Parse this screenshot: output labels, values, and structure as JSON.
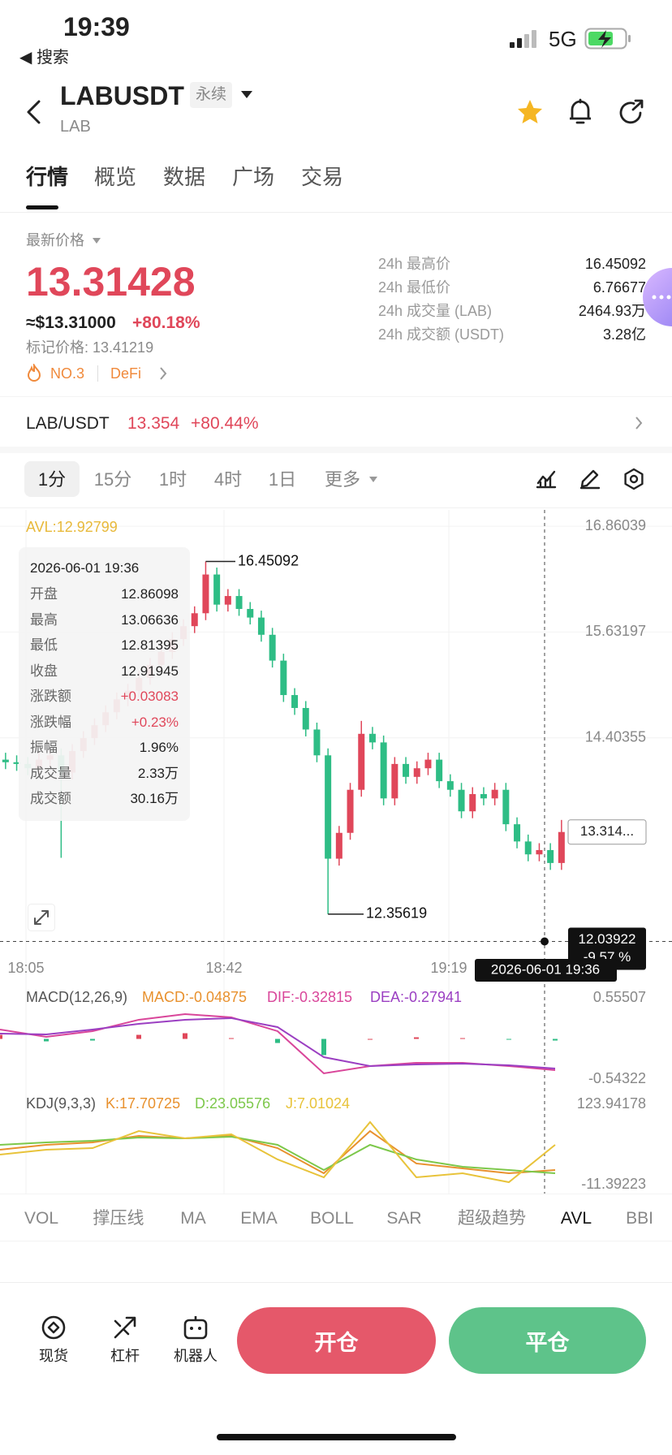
{
  "status_bar": {
    "time": "19:39",
    "back_app": "◀ 搜索",
    "network": "5G"
  },
  "header": {
    "symbol": "LABUSDT",
    "tag": "永续",
    "base": "LAB"
  },
  "tabs": [
    "行情",
    "概览",
    "数据",
    "广场",
    "交易"
  ],
  "price": {
    "label": "最新价格",
    "last": "13.31428",
    "approx": "≈$13.31000",
    "change": "+80.18%",
    "mark": "标记价格: 13.41219",
    "rank": "NO.3",
    "sector": "DeFi"
  },
  "stats": [
    {
      "label": "24h 最高价",
      "value": "16.45092"
    },
    {
      "label": "24h 最低价",
      "value": "6.76677"
    },
    {
      "label": "24h 成交量 (LAB)",
      "value": "2464.93万"
    },
    {
      "label": "24h 成交额 (USDT)",
      "value": "3.28亿"
    }
  ],
  "spot": {
    "pair": "LAB/USDT",
    "price": "13.354",
    "change": "+80.44%"
  },
  "intervals": [
    "1分",
    "15分",
    "1时",
    "4时",
    "1日",
    "更多"
  ],
  "price_chart": {
    "type": "candlestick",
    "avl": "AVL:12.92799",
    "ylim": [
      11.94,
      17.05
    ],
    "yticks": [
      16.86039,
      15.63197,
      14.40355
    ],
    "x_labels": [
      "18:05",
      "18:42",
      "19:19"
    ],
    "up_color": "#e0475a",
    "down_color": "#2ebd85",
    "open": [
      14.15,
      14.12,
      14.1,
      14.05,
      14.15,
      14.2,
      14.0,
      14.25,
      14.4,
      14.55,
      14.7,
      14.85,
      14.95,
      15.1,
      15.25,
      15.4,
      15.55,
      15.7,
      15.85,
      16.3,
      15.95,
      16.05,
      15.9,
      15.8,
      15.6,
      15.3,
      14.9,
      14.75,
      14.5,
      14.2,
      13.0,
      13.3,
      13.8,
      14.45,
      14.35,
      13.7,
      14.1,
      13.95,
      14.05,
      14.15,
      13.9,
      13.8,
      13.55,
      13.75,
      13.7,
      13.8,
      13.4,
      13.2,
      13.05,
      13.1,
      12.95
    ],
    "high": [
      14.23,
      14.2,
      14.18,
      14.23,
      14.28,
      14.28,
      14.33,
      14.48,
      14.63,
      14.78,
      14.93,
      15.03,
      15.18,
      15.33,
      15.48,
      15.63,
      15.78,
      15.93,
      16.45092,
      16.38,
      16.13,
      16.13,
      15.98,
      15.88,
      15.68,
      15.38,
      14.98,
      14.83,
      14.58,
      14.28,
      13.38,
      13.88,
      14.6,
      14.53,
      14.43,
      14.18,
      14.18,
      14.13,
      14.23,
      14.23,
      13.98,
      13.88,
      13.83,
      13.83,
      13.88,
      13.88,
      13.48,
      13.28,
      13.18,
      13.18,
      13.45
    ],
    "low": [
      14.04,
      14.02,
      13.97,
      13.97,
      14.07,
      13.01,
      13.92,
      14.17,
      14.32,
      14.47,
      14.62,
      14.77,
      14.87,
      15.02,
      15.17,
      15.32,
      15.47,
      15.62,
      15.77,
      15.87,
      15.87,
      15.82,
      15.72,
      15.52,
      15.22,
      14.82,
      14.67,
      14.42,
      14.12,
      12.35619,
      12.92,
      13.22,
      13.72,
      14.27,
      13.62,
      13.62,
      13.87,
      13.87,
      13.97,
      13.82,
      13.72,
      13.47,
      13.47,
      13.62,
      13.62,
      13.32,
      13.12,
      12.97,
      12.97,
      12.87,
      12.87
    ],
    "close": [
      14.12,
      14.1,
      14.05,
      14.15,
      14.2,
      14.0,
      14.25,
      14.4,
      14.55,
      14.7,
      14.85,
      14.95,
      15.1,
      15.25,
      15.4,
      15.55,
      15.7,
      15.85,
      16.3,
      15.95,
      16.05,
      15.9,
      15.8,
      15.6,
      15.3,
      14.9,
      14.75,
      14.5,
      14.2,
      13.0,
      13.3,
      13.8,
      14.45,
      14.35,
      13.7,
      14.1,
      13.95,
      14.05,
      14.15,
      13.9,
      13.8,
      13.55,
      13.75,
      13.7,
      13.8,
      13.4,
      13.2,
      13.05,
      13.1,
      12.95,
      13.31
    ],
    "high_label": 16.45092,
    "low_label": 12.35619,
    "last_price_label": "13.314...",
    "crosshair": {
      "price": 12.03922,
      "change": "-9.57 %",
      "time": "2026-06-01 19:36"
    },
    "tooltip": {
      "time": "2026-06-01 19:36",
      "rows": [
        {
          "label": "开盘",
          "value": "12.86098"
        },
        {
          "label": "最高",
          "value": "13.06636"
        },
        {
          "label": "最低",
          "value": "12.81395"
        },
        {
          "label": "收盘",
          "value": "12.91945"
        },
        {
          "label": "涨跌额",
          "value": "+0.03083"
        },
        {
          "label": "涨跌幅",
          "value": "+0.23%"
        },
        {
          "label": "振幅",
          "value": "1.96%"
        },
        {
          "label": "成交量",
          "value": "2.33万"
        },
        {
          "label": "成交额",
          "value": "30.16万"
        }
      ]
    }
  },
  "macd_chart": {
    "type": "line",
    "title": "MACD(12,26,9)",
    "ylim": [
      -0.54322,
      0.55507
    ],
    "yticks": [
      0.55507,
      -0.54322
    ],
    "histogram": {
      "name": "MACD:-0.04875",
      "color": "#e8912e",
      "up_color": "#e0475a",
      "down_color": "#2ebd85",
      "values": [
        0.055,
        -0.033,
        -0.022,
        0.055,
        0.077,
        0.011,
        -0.055,
        -0.219,
        0,
        0.022,
        0.011,
        -0.011,
        -0.022
      ]
    },
    "series": [
      {
        "name": "DIF:-0.32815",
        "color": "#d9469a",
        "values": [
          0.127,
          0.028,
          0.105,
          0.259,
          0.336,
          0.292,
          0.105,
          -0.466,
          -0.367,
          -0.323,
          -0.323,
          -0.367,
          -0.422
        ]
      },
      {
        "name": "DEA:-0.27941",
        "color": "#9b3fc2",
        "values": [
          0.072,
          0.061,
          0.127,
          0.204,
          0.259,
          0.281,
          0.16,
          -0.247,
          -0.367,
          -0.345,
          -0.334,
          -0.356,
          -0.4
        ]
      }
    ]
  },
  "kdj_chart": {
    "type": "line",
    "title": "KDJ(9,3,3)",
    "ylim": [
      -11.39223,
      123.94178
    ],
    "yticks": [
      123.94178,
      -11.39223
    ],
    "series": [
      {
        "name": "K:17.70725",
        "color": "#e8912e",
        "values": [
          47.4,
          55.6,
          59.7,
          70.6,
          66.5,
          70.6,
          50.1,
          7.7,
          78.8,
          24.2,
          16.0,
          7.7,
          13.2
        ]
      },
      {
        "name": "D:23.05576",
        "color": "#7dc84b",
        "values": [
          55.6,
          59.7,
          62.4,
          67.9,
          66.5,
          69.2,
          55.6,
          13.2,
          55.6,
          31.0,
          18.7,
          13.2,
          7.7
        ]
      },
      {
        "name": "J:7.01024",
        "color": "#e8c33a",
        "values": [
          39.2,
          47.4,
          50.1,
          78.8,
          66.5,
          73.4,
          31.0,
          0.9,
          93.9,
          0.9,
          7.7,
          -7.3,
          55.6
        ]
      }
    ]
  },
  "indicators": [
    "VOL",
    "撑压线",
    "MA",
    "EMA",
    "BOLL",
    "SAR",
    "超级趋势",
    "AVL",
    "BBI"
  ],
  "bottom_nav": [
    "现货",
    "杠杆",
    "机器人"
  ],
  "actions": [
    "开仓",
    "平仓"
  ]
}
